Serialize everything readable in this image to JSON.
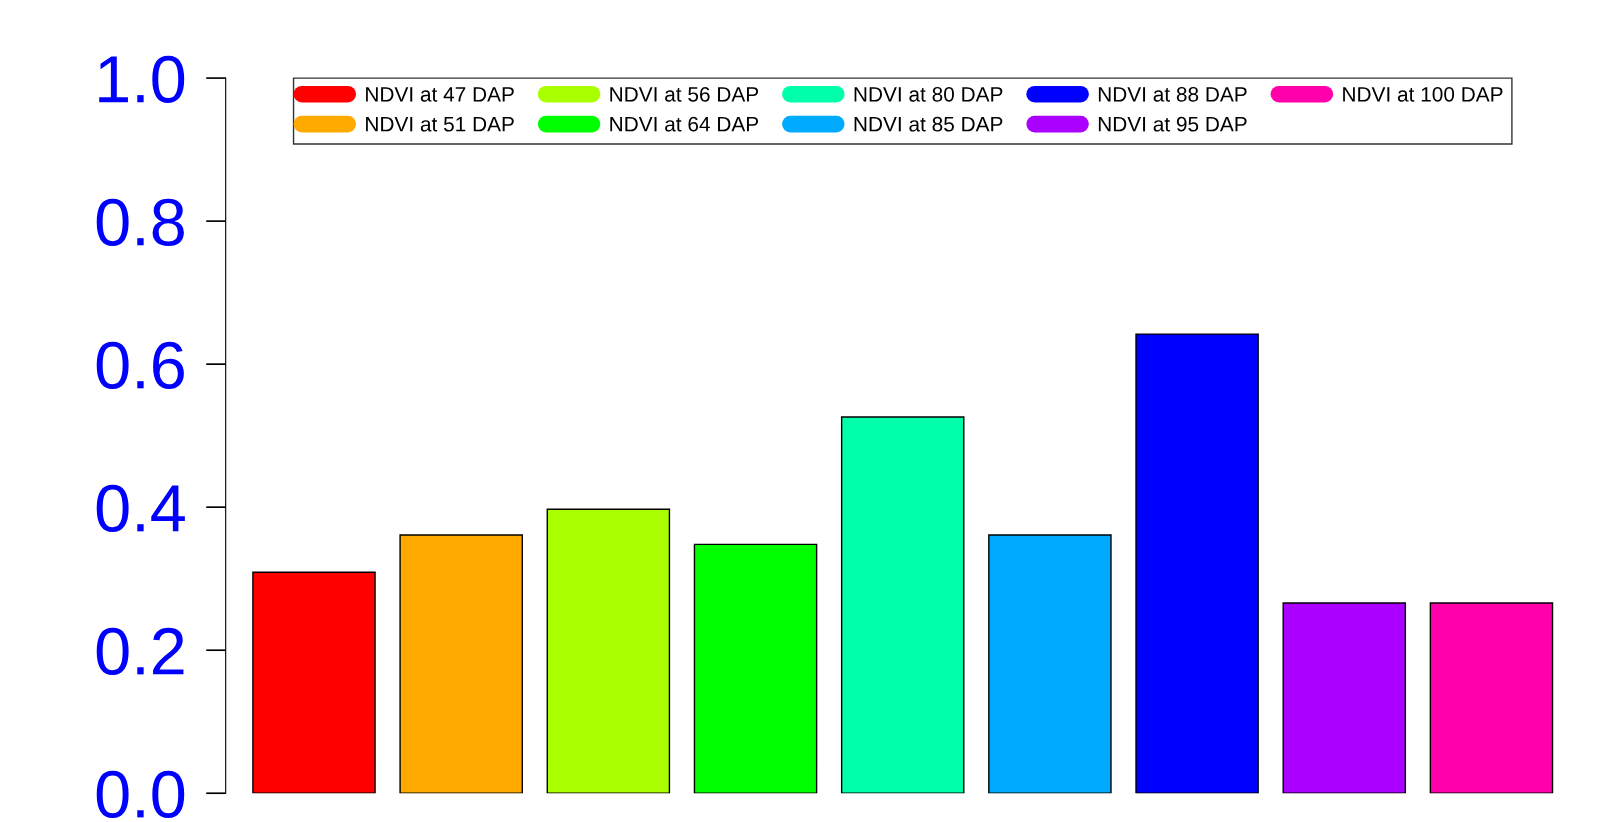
{
  "chart_data": {
    "type": "bar",
    "stacked": true,
    "categories": [
      null,
      null,
      null,
      null,
      null,
      null,
      null,
      null,
      null
    ],
    "series": [
      {
        "name": "NDVI at 47 DAP",
        "color": "#ff0000",
        "values": [
          0.309,
          null,
          null,
          null,
          null,
          null,
          null,
          null,
          null
        ]
      },
      {
        "name": "NDVI at 51 DAP",
        "color": "#ffaa00",
        "values": [
          null,
          0.361,
          null,
          null,
          null,
          null,
          null,
          null,
          null
        ]
      },
      {
        "name": "NDVI at 56 DAP",
        "color": "#aaff00",
        "values": [
          null,
          null,
          0.397,
          null,
          null,
          null,
          null,
          null,
          null
        ]
      },
      {
        "name": "NDVI at 64 DAP",
        "color": "#00ff00",
        "values": [
          null,
          null,
          null,
          0.348,
          null,
          null,
          null,
          null,
          null
        ]
      },
      {
        "name": "NDVI at 80 DAP",
        "color": "#00ffaa",
        "values": [
          null,
          null,
          null,
          null,
          0.526,
          null,
          null,
          null,
          null
        ]
      },
      {
        "name": "NDVI at 85 DAP",
        "color": "#00aaff",
        "values": [
          null,
          null,
          null,
          null,
          null,
          0.361,
          null,
          null,
          null
        ]
      },
      {
        "name": "NDVI at 88 DAP",
        "color": "#0000ff",
        "values": [
          null,
          null,
          null,
          null,
          null,
          null,
          0.642,
          null,
          null
        ]
      },
      {
        "name": "NDVI at 95 DAP",
        "color": "#aa00ff",
        "values": [
          null,
          null,
          null,
          null,
          null,
          null,
          null,
          0.266,
          null
        ]
      },
      {
        "name": "NDVI at 100 DAP",
        "color": "#ff00aa",
        "values": [
          null,
          null,
          null,
          null,
          null,
          null,
          null,
          null,
          0.266
        ]
      }
    ],
    "ylim": [
      0,
      1.0
    ],
    "yticks": [
      {
        "value": 0,
        "label": "0.0"
      },
      {
        "value": 0.2,
        "label": "0.2"
      },
      {
        "value": 0.4,
        "label": "0.4"
      },
      {
        "value": 0.6,
        "label": "0.6"
      },
      {
        "value": 0.8,
        "label": "0.8"
      },
      {
        "value": 1.0,
        "label": "1.0"
      }
    ],
    "grid": false,
    "legend": "top",
    "tick_labels": "y"
  }
}
